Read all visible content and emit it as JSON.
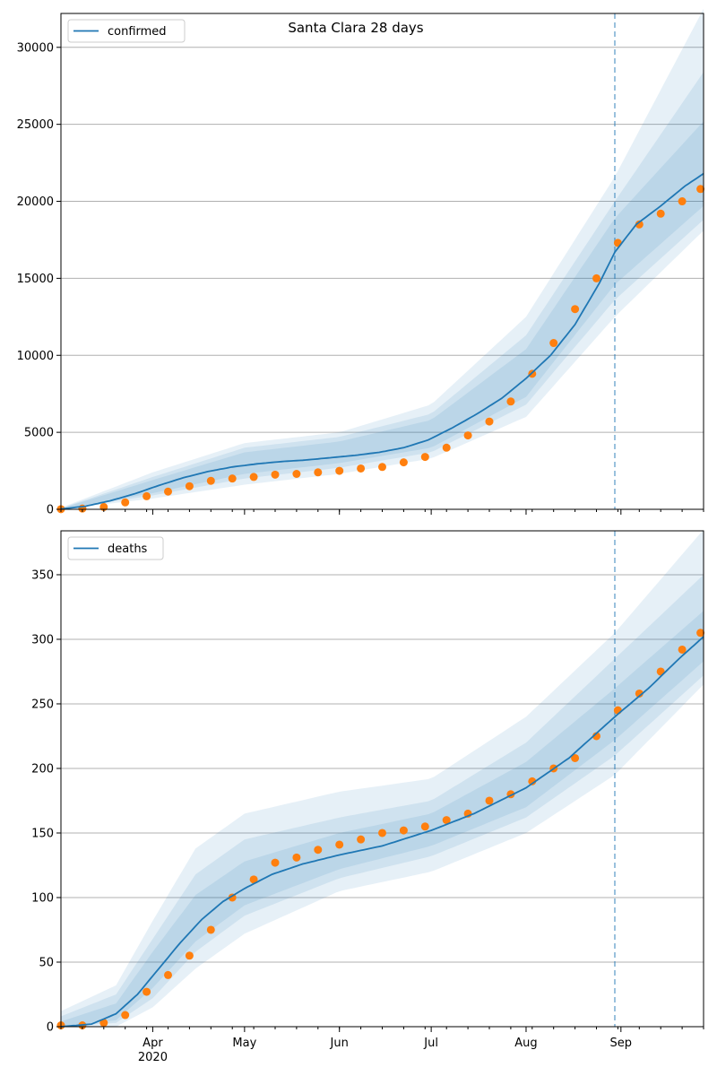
{
  "title": "Santa Clara 28 days",
  "colors": {
    "model_line": "#1f77b4",
    "band": "#1f77b4",
    "observed": "#ff7f0e",
    "grid": "#b0b0b0",
    "cutoff": "#1f77b4"
  },
  "chart_data": [
    {
      "type": "line",
      "legend": "confirmed",
      "legend_position": "upper-left",
      "grid": "horizontal",
      "x_range": [
        "2020-03-02",
        "2020-09-28"
      ],
      "x_month_ticks": [
        {
          "date": "2020-04-01",
          "label": "Apr"
        },
        {
          "date": "2020-05-01",
          "label": "May"
        },
        {
          "date": "2020-06-01",
          "label": "Jun"
        },
        {
          "date": "2020-07-01",
          "label": "Jul"
        },
        {
          "date": "2020-08-01",
          "label": "Aug"
        },
        {
          "date": "2020-09-01",
          "label": "Sep"
        }
      ],
      "x_year_label": {
        "date": "2020-04-01",
        "label": "2020"
      },
      "ylim": [
        0,
        32200
      ],
      "yticks": [
        0,
        5000,
        10000,
        15000,
        20000,
        25000,
        30000
      ],
      "forecast_start": "2020-08-30",
      "model": [
        {
          "x": "2020-03-02",
          "y": 20
        },
        {
          "x": "2020-03-10",
          "y": 200
        },
        {
          "x": "2020-03-18",
          "y": 550
        },
        {
          "x": "2020-03-26",
          "y": 1000
        },
        {
          "x": "2020-04-03",
          "y": 1550
        },
        {
          "x": "2020-04-11",
          "y": 2050
        },
        {
          "x": "2020-04-19",
          "y": 2450
        },
        {
          "x": "2020-04-27",
          "y": 2750
        },
        {
          "x": "2020-05-05",
          "y": 2950
        },
        {
          "x": "2020-05-13",
          "y": 3100
        },
        {
          "x": "2020-05-21",
          "y": 3200
        },
        {
          "x": "2020-05-29",
          "y": 3350
        },
        {
          "x": "2020-06-06",
          "y": 3500
        },
        {
          "x": "2020-06-14",
          "y": 3700
        },
        {
          "x": "2020-06-22",
          "y": 4000
        },
        {
          "x": "2020-06-30",
          "y": 4500
        },
        {
          "x": "2020-07-08",
          "y": 5300
        },
        {
          "x": "2020-07-16",
          "y": 6200
        },
        {
          "x": "2020-07-24",
          "y": 7200
        },
        {
          "x": "2020-08-01",
          "y": 8500
        },
        {
          "x": "2020-08-09",
          "y": 10000
        },
        {
          "x": "2020-08-17",
          "y": 12000
        },
        {
          "x": "2020-08-25",
          "y": 14700
        },
        {
          "x": "2020-08-30",
          "y": 16700
        },
        {
          "x": "2020-09-06",
          "y": 18500
        },
        {
          "x": "2020-09-14",
          "y": 19700
        },
        {
          "x": "2020-09-22",
          "y": 21000
        },
        {
          "x": "2020-09-28",
          "y": 21800
        }
      ],
      "bands": [
        {
          "x": [
            "2020-03-02",
            "2020-04-01",
            "2020-05-01",
            "2020-06-01",
            "2020-07-01",
            "2020-08-01",
            "2020-08-30",
            "2020-09-28"
          ],
          "lower": [
            0,
            700,
            1600,
            2300,
            3300,
            6000,
            12500,
            18100
          ],
          "upper": [
            100,
            2400,
            4300,
            5000,
            6800,
            12500,
            21600,
            32500
          ]
        },
        {
          "x": [
            "2020-03-02",
            "2020-04-01",
            "2020-05-01",
            "2020-06-01",
            "2020-07-01",
            "2020-08-01",
            "2020-08-30",
            "2020-09-28"
          ],
          "lower": [
            10,
            900,
            2000,
            2700,
            3700,
            6800,
            13600,
            18800
          ],
          "upper": [
            70,
            2100,
            4000,
            4700,
            6200,
            11300,
            20000,
            28400
          ]
        },
        {
          "x": [
            "2020-03-02",
            "2020-04-01",
            "2020-05-01",
            "2020-06-01",
            "2020-07-01",
            "2020-08-01",
            "2020-08-30",
            "2020-09-28"
          ],
          "lower": [
            15,
            1050,
            2300,
            3000,
            4000,
            7300,
            14600,
            19700
          ],
          "upper": [
            50,
            1900,
            3700,
            4400,
            5800,
            10400,
            18900,
            25200
          ]
        }
      ],
      "observed": [
        {
          "x": "2020-03-02",
          "y": 10
        },
        {
          "x": "2020-03-09",
          "y": 50
        },
        {
          "x": "2020-03-16",
          "y": 150
        },
        {
          "x": "2020-03-23",
          "y": 450
        },
        {
          "x": "2020-03-30",
          "y": 850
        },
        {
          "x": "2020-04-06",
          "y": 1150
        },
        {
          "x": "2020-04-13",
          "y": 1500
        },
        {
          "x": "2020-04-20",
          "y": 1850
        },
        {
          "x": "2020-04-27",
          "y": 2000
        },
        {
          "x": "2020-05-04",
          "y": 2100
        },
        {
          "x": "2020-05-11",
          "y": 2250
        },
        {
          "x": "2020-05-18",
          "y": 2300
        },
        {
          "x": "2020-05-25",
          "y": 2400
        },
        {
          "x": "2020-06-01",
          "y": 2500
        },
        {
          "x": "2020-06-08",
          "y": 2650
        },
        {
          "x": "2020-06-15",
          "y": 2750
        },
        {
          "x": "2020-06-22",
          "y": 3050
        },
        {
          "x": "2020-06-29",
          "y": 3400
        },
        {
          "x": "2020-07-06",
          "y": 4000
        },
        {
          "x": "2020-07-13",
          "y": 4800
        },
        {
          "x": "2020-07-20",
          "y": 5700
        },
        {
          "x": "2020-07-27",
          "y": 7000
        },
        {
          "x": "2020-08-03",
          "y": 8800
        },
        {
          "x": "2020-08-10",
          "y": 10800
        },
        {
          "x": "2020-08-17",
          "y": 13000
        },
        {
          "x": "2020-08-24",
          "y": 15000
        },
        {
          "x": "2020-08-31",
          "y": 17300
        },
        {
          "x": "2020-09-07",
          "y": 18500
        },
        {
          "x": "2020-09-14",
          "y": 19200
        },
        {
          "x": "2020-09-21",
          "y": 20000
        },
        {
          "x": "2020-09-27",
          "y": 20800
        }
      ]
    },
    {
      "type": "line",
      "legend": "deaths",
      "legend_position": "upper-left",
      "grid": "horizontal",
      "x_range": [
        "2020-03-02",
        "2020-09-28"
      ],
      "x_month_ticks": [
        {
          "date": "2020-04-01",
          "label": "Apr"
        },
        {
          "date": "2020-05-01",
          "label": "May"
        },
        {
          "date": "2020-06-01",
          "label": "Jun"
        },
        {
          "date": "2020-07-01",
          "label": "Jul"
        },
        {
          "date": "2020-08-01",
          "label": "Aug"
        },
        {
          "date": "2020-09-01",
          "label": "Sep"
        }
      ],
      "x_year_label": {
        "date": "2020-04-01",
        "label": "2020"
      },
      "ylim": [
        0,
        384
      ],
      "yticks": [
        0,
        50,
        100,
        150,
        200,
        250,
        300,
        350
      ],
      "forecast_start": "2020-08-30",
      "model": [
        {
          "x": "2020-03-02",
          "y": 0
        },
        {
          "x": "2020-03-12",
          "y": 2
        },
        {
          "x": "2020-03-20",
          "y": 10
        },
        {
          "x": "2020-03-27",
          "y": 25
        },
        {
          "x": "2020-04-03",
          "y": 45
        },
        {
          "x": "2020-04-10",
          "y": 65
        },
        {
          "x": "2020-04-17",
          "y": 83
        },
        {
          "x": "2020-04-24",
          "y": 97
        },
        {
          "x": "2020-05-01",
          "y": 107
        },
        {
          "x": "2020-05-10",
          "y": 118
        },
        {
          "x": "2020-05-20",
          "y": 126
        },
        {
          "x": "2020-06-01",
          "y": 133
        },
        {
          "x": "2020-06-15",
          "y": 140
        },
        {
          "x": "2020-07-01",
          "y": 152
        },
        {
          "x": "2020-07-15",
          "y": 165
        },
        {
          "x": "2020-08-01",
          "y": 185
        },
        {
          "x": "2020-08-15",
          "y": 208
        },
        {
          "x": "2020-08-30",
          "y": 240
        },
        {
          "x": "2020-09-10",
          "y": 262
        },
        {
          "x": "2020-09-20",
          "y": 285
        },
        {
          "x": "2020-09-28",
          "y": 302
        }
      ],
      "bands": [
        {
          "x": [
            "2020-03-02",
            "2020-03-20",
            "2020-04-01",
            "2020-04-15",
            "2020-05-01",
            "2020-06-01",
            "2020-07-01",
            "2020-08-01",
            "2020-08-30",
            "2020-09-28"
          ],
          "lower": [
            0,
            0,
            15,
            45,
            72,
            105,
            120,
            150,
            195,
            265
          ],
          "upper": [
            12,
            32,
            82,
            138,
            165,
            182,
            192,
            240,
            305,
            385
          ]
        },
        {
          "x": [
            "2020-03-02",
            "2020-03-20",
            "2020-04-01",
            "2020-04-15",
            "2020-05-01",
            "2020-06-01",
            "2020-07-01",
            "2020-08-01",
            "2020-08-30",
            "2020-09-28"
          ],
          "lower": [
            0,
            3,
            22,
            58,
            86,
            115,
            132,
            162,
            210,
            272
          ],
          "upper": [
            8,
            25,
            68,
            118,
            145,
            162,
            175,
            220,
            285,
            350
          ]
        },
        {
          "x": [
            "2020-03-02",
            "2020-03-20",
            "2020-04-01",
            "2020-04-15",
            "2020-05-01",
            "2020-06-01",
            "2020-07-01",
            "2020-08-01",
            "2020-08-30",
            "2020-09-28"
          ],
          "lower": [
            0,
            5,
            30,
            66,
            94,
            122,
            140,
            170,
            222,
            283
          ],
          "upper": [
            4,
            18,
            58,
            102,
            128,
            150,
            165,
            205,
            262,
            322
          ]
        }
      ],
      "observed": [
        {
          "x": "2020-03-02",
          "y": 1
        },
        {
          "x": "2020-03-09",
          "y": 1
        },
        {
          "x": "2020-03-16",
          "y": 3
        },
        {
          "x": "2020-03-23",
          "y": 9
        },
        {
          "x": "2020-03-30",
          "y": 27
        },
        {
          "x": "2020-04-06",
          "y": 40
        },
        {
          "x": "2020-04-13",
          "y": 55
        },
        {
          "x": "2020-04-20",
          "y": 75
        },
        {
          "x": "2020-04-27",
          "y": 100
        },
        {
          "x": "2020-05-04",
          "y": 114
        },
        {
          "x": "2020-05-11",
          "y": 127
        },
        {
          "x": "2020-05-18",
          "y": 131
        },
        {
          "x": "2020-05-25",
          "y": 137
        },
        {
          "x": "2020-06-01",
          "y": 141
        },
        {
          "x": "2020-06-08",
          "y": 145
        },
        {
          "x": "2020-06-15",
          "y": 150
        },
        {
          "x": "2020-06-22",
          "y": 152
        },
        {
          "x": "2020-06-29",
          "y": 155
        },
        {
          "x": "2020-07-06",
          "y": 160
        },
        {
          "x": "2020-07-13",
          "y": 165
        },
        {
          "x": "2020-07-20",
          "y": 175
        },
        {
          "x": "2020-07-27",
          "y": 180
        },
        {
          "x": "2020-08-03",
          "y": 190
        },
        {
          "x": "2020-08-10",
          "y": 200
        },
        {
          "x": "2020-08-17",
          "y": 208
        },
        {
          "x": "2020-08-24",
          "y": 225
        },
        {
          "x": "2020-08-31",
          "y": 245
        },
        {
          "x": "2020-09-07",
          "y": 258
        },
        {
          "x": "2020-09-14",
          "y": 275
        },
        {
          "x": "2020-09-21",
          "y": 292
        },
        {
          "x": "2020-09-27",
          "y": 305
        }
      ]
    }
  ]
}
